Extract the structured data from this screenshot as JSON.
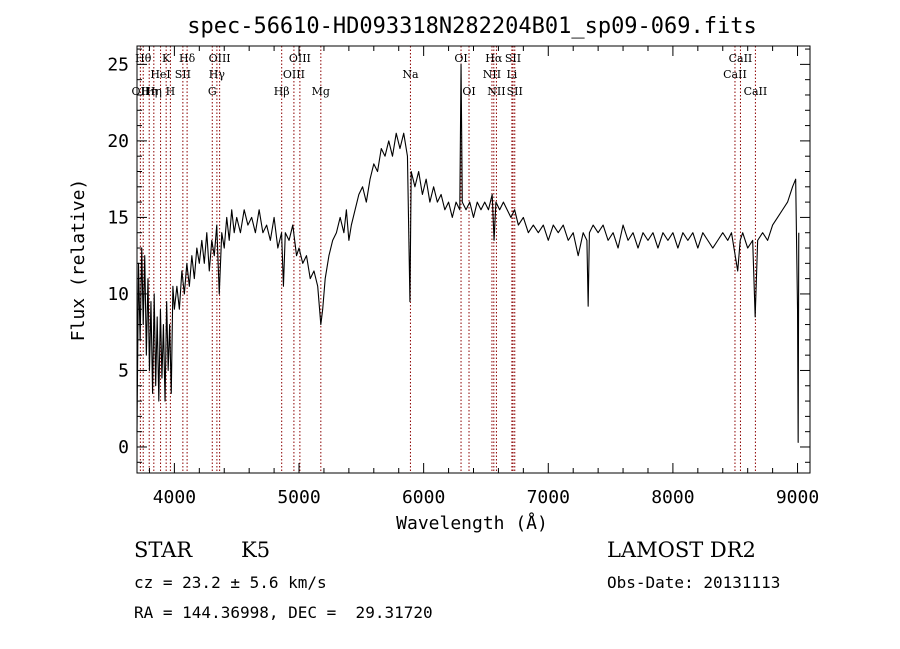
{
  "chart_data": {
    "type": "line",
    "title": "spec-56610-HD093318N282204B01_sp09-069.fits",
    "xlabel": "Wavelength (Å)",
    "ylabel": "Flux (relative)",
    "xlim": [
      3700,
      9100
    ],
    "ylim": [
      -1.7,
      26.2
    ],
    "x_ticks": [
      4000,
      5000,
      6000,
      7000,
      8000,
      9000
    ],
    "y_ticks": [
      0,
      5,
      10,
      15,
      20,
      25
    ],
    "grid": false,
    "line_color": "#000000",
    "marker_color": "#8b0000",
    "series": [
      {
        "points": [
          [
            3700,
            1.0
          ],
          [
            3712,
            12.0
          ],
          [
            3725,
            7.0
          ],
          [
            3738,
            13.0
          ],
          [
            3750,
            8.0
          ],
          [
            3762,
            12.5
          ],
          [
            3775,
            6.0
          ],
          [
            3788,
            11.0
          ],
          [
            3800,
            5.0
          ],
          [
            3812,
            9.5
          ],
          [
            3825,
            3.5
          ],
          [
            3838,
            10.0
          ],
          [
            3850,
            4.0
          ],
          [
            3862,
            8.5
          ],
          [
            3875,
            3.0
          ],
          [
            3888,
            9.0
          ],
          [
            3900,
            4.5
          ],
          [
            3912,
            8.0
          ],
          [
            3925,
            3.0
          ],
          [
            3938,
            9.5
          ],
          [
            3950,
            5.0
          ],
          [
            3962,
            8.0
          ],
          [
            3975,
            3.5
          ],
          [
            3988,
            10.5
          ],
          [
            4000,
            9.0
          ],
          [
            4020,
            10.5
          ],
          [
            4040,
            9.0
          ],
          [
            4060,
            11.5
          ],
          [
            4080,
            10.0
          ],
          [
            4100,
            12.0
          ],
          [
            4120,
            10.5
          ],
          [
            4140,
            12.5
          ],
          [
            4160,
            11.0
          ],
          [
            4180,
            13.0
          ],
          [
            4200,
            12.0
          ],
          [
            4220,
            13.5
          ],
          [
            4240,
            12.0
          ],
          [
            4260,
            14.0
          ],
          [
            4280,
            11.5
          ],
          [
            4300,
            13.5
          ],
          [
            4320,
            12.5
          ],
          [
            4340,
            14.5
          ],
          [
            4360,
            10.0
          ],
          [
            4380,
            14.0
          ],
          [
            4400,
            13.0
          ],
          [
            4420,
            15.0
          ],
          [
            4440,
            13.5
          ],
          [
            4460,
            15.5
          ],
          [
            4480,
            14.0
          ],
          [
            4500,
            15.0
          ],
          [
            4530,
            14.0
          ],
          [
            4560,
            15.5
          ],
          [
            4590,
            14.5
          ],
          [
            4620,
            15.0
          ],
          [
            4650,
            14.0
          ],
          [
            4680,
            15.5
          ],
          [
            4710,
            14.0
          ],
          [
            4740,
            14.5
          ],
          [
            4770,
            13.5
          ],
          [
            4800,
            15.0
          ],
          [
            4830,
            13.0
          ],
          [
            4860,
            14.0
          ],
          [
            4875,
            10.5
          ],
          [
            4890,
            14.0
          ],
          [
            4920,
            13.5
          ],
          [
            4950,
            14.5
          ],
          [
            4980,
            12.5
          ],
          [
            5000,
            13.0
          ],
          [
            5030,
            12.0
          ],
          [
            5060,
            12.5
          ],
          [
            5090,
            11.0
          ],
          [
            5120,
            11.5
          ],
          [
            5150,
            10.5
          ],
          [
            5175,
            8.0
          ],
          [
            5190,
            9.0
          ],
          [
            5210,
            11.0
          ],
          [
            5240,
            12.5
          ],
          [
            5270,
            13.5
          ],
          [
            5300,
            14.0
          ],
          [
            5330,
            15.0
          ],
          [
            5360,
            14.0
          ],
          [
            5380,
            15.5
          ],
          [
            5400,
            13.5
          ],
          [
            5420,
            14.5
          ],
          [
            5450,
            15.5
          ],
          [
            5480,
            16.5
          ],
          [
            5510,
            17.0
          ],
          [
            5540,
            16.0
          ],
          [
            5570,
            17.5
          ],
          [
            5600,
            18.5
          ],
          [
            5630,
            18.0
          ],
          [
            5660,
            19.5
          ],
          [
            5690,
            19.0
          ],
          [
            5720,
            20.0
          ],
          [
            5750,
            19.0
          ],
          [
            5780,
            20.5
          ],
          [
            5810,
            19.5
          ],
          [
            5840,
            20.5
          ],
          [
            5870,
            19.0
          ],
          [
            5890,
            9.5
          ],
          [
            5900,
            18.0
          ],
          [
            5930,
            17.0
          ],
          [
            5960,
            18.0
          ],
          [
            5990,
            16.5
          ],
          [
            6020,
            17.5
          ],
          [
            6050,
            16.0
          ],
          [
            6080,
            17.0
          ],
          [
            6110,
            16.0
          ],
          [
            6140,
            16.5
          ],
          [
            6170,
            15.5
          ],
          [
            6200,
            16.0
          ],
          [
            6230,
            15.0
          ],
          [
            6260,
            16.0
          ],
          [
            6290,
            15.5
          ],
          [
            6300,
            25.0
          ],
          [
            6310,
            16.0
          ],
          [
            6340,
            15.5
          ],
          [
            6370,
            16.0
          ],
          [
            6400,
            15.0
          ],
          [
            6430,
            16.0
          ],
          [
            6460,
            15.5
          ],
          [
            6490,
            16.0
          ],
          [
            6520,
            15.5
          ],
          [
            6550,
            16.5
          ],
          [
            6565,
            13.5
          ],
          [
            6580,
            16.0
          ],
          [
            6610,
            15.5
          ],
          [
            6640,
            16.0
          ],
          [
            6670,
            15.5
          ],
          [
            6700,
            15.0
          ],
          [
            6730,
            15.5
          ],
          [
            6760,
            14.5
          ],
          [
            6800,
            15.0
          ],
          [
            6840,
            14.0
          ],
          [
            6880,
            14.5
          ],
          [
            6920,
            14.0
          ],
          [
            6960,
            14.5
          ],
          [
            7000,
            13.5
          ],
          [
            7040,
            14.5
          ],
          [
            7080,
            14.0
          ],
          [
            7120,
            14.5
          ],
          [
            7160,
            13.5
          ],
          [
            7200,
            14.0
          ],
          [
            7240,
            12.5
          ],
          [
            7280,
            14.0
          ],
          [
            7310,
            13.5
          ],
          [
            7320,
            9.2
          ],
          [
            7330,
            14.0
          ],
          [
            7360,
            14.5
          ],
          [
            7400,
            14.0
          ],
          [
            7440,
            14.5
          ],
          [
            7480,
            13.5
          ],
          [
            7520,
            14.0
          ],
          [
            7560,
            13.0
          ],
          [
            7600,
            14.5
          ],
          [
            7640,
            13.5
          ],
          [
            7680,
            14.0
          ],
          [
            7720,
            13.0
          ],
          [
            7760,
            14.0
          ],
          [
            7800,
            13.5
          ],
          [
            7840,
            14.0
          ],
          [
            7880,
            13.0
          ],
          [
            7920,
            14.0
          ],
          [
            7960,
            13.5
          ],
          [
            8000,
            14.0
          ],
          [
            8040,
            13.0
          ],
          [
            8080,
            14.0
          ],
          [
            8120,
            13.5
          ],
          [
            8160,
            14.0
          ],
          [
            8200,
            13.0
          ],
          [
            8240,
            14.0
          ],
          [
            8280,
            13.5
          ],
          [
            8320,
            13.0
          ],
          [
            8360,
            13.5
          ],
          [
            8400,
            14.0
          ],
          [
            8440,
            13.5
          ],
          [
            8470,
            14.0
          ],
          [
            8500,
            12.5
          ],
          [
            8520,
            11.5
          ],
          [
            8540,
            13.5
          ],
          [
            8560,
            14.0
          ],
          [
            8600,
            13.0
          ],
          [
            8640,
            13.5
          ],
          [
            8660,
            8.5
          ],
          [
            8680,
            13.5
          ],
          [
            8720,
            14.0
          ],
          [
            8760,
            13.5
          ],
          [
            8800,
            14.5
          ],
          [
            8840,
            15.0
          ],
          [
            8880,
            15.5
          ],
          [
            8920,
            16.0
          ],
          [
            8960,
            17.0
          ],
          [
            8985,
            17.5
          ],
          [
            9000,
            9.0
          ],
          [
            9005,
            0.3
          ],
          [
            9010,
            14.0
          ]
        ]
      }
    ],
    "line_markers": [
      {
        "wl": 3727,
        "label": "OII",
        "row": 3
      },
      {
        "wl": 3750,
        "label": "Hθ",
        "row": 1
      },
      {
        "wl": 3798,
        "label": "Hη",
        "row": 3
      },
      {
        "wl": 3835,
        "label": "Hη",
        "row": 3
      },
      {
        "wl": 3889,
        "label": "HeI",
        "row": 2
      },
      {
        "wl": 3934,
        "label": "K",
        "row": 1
      },
      {
        "wl": 3968,
        "label": "H",
        "row": 3
      },
      {
        "wl": 4068,
        "label": "SII",
        "row": 2
      },
      {
        "wl": 4102,
        "label": "Hδ",
        "row": 1
      },
      {
        "wl": 4304,
        "label": "G",
        "row": 3
      },
      {
        "wl": 4341,
        "label": "Hγ",
        "row": 2
      },
      {
        "wl": 4363,
        "label": "OIII",
        "row": 1
      },
      {
        "wl": 4861,
        "label": "Hβ",
        "row": 3
      },
      {
        "wl": 4959,
        "label": "OIII",
        "row": 2
      },
      {
        "wl": 5007,
        "label": "OIII",
        "row": 1
      },
      {
        "wl": 5175,
        "label": "Mg",
        "row": 3
      },
      {
        "wl": 5894,
        "label": "Na",
        "row": 2
      },
      {
        "wl": 6300,
        "label": "OI",
        "row": 1
      },
      {
        "wl": 6364,
        "label": "OI",
        "row": 3
      },
      {
        "wl": 6548,
        "label": "NII",
        "row": 2
      },
      {
        "wl": 6563,
        "label": "Hα",
        "row": 1
      },
      {
        "wl": 6584,
        "label": "NII",
        "row": 3
      },
      {
        "wl": 6708,
        "label": "Li",
        "row": 2
      },
      {
        "wl": 6717,
        "label": "SII",
        "row": 1
      },
      {
        "wl": 6731,
        "label": "SII",
        "row": 3
      },
      {
        "wl": 8498,
        "label": "CaII",
        "row": 2
      },
      {
        "wl": 8542,
        "label": "CaII",
        "row": 1
      },
      {
        "wl": 8662,
        "label": "CaII",
        "row": 3
      }
    ]
  },
  "info": {
    "class_label": "STAR",
    "subclass_label": "K5",
    "survey_label": "LAMOST DR2",
    "cz_text": "cz = 23.2 ± 5.6 km/s",
    "obs_date_text": "Obs-Date: 20131113",
    "coords_text": "RA = 144.36998, DEC =  29.31720"
  }
}
